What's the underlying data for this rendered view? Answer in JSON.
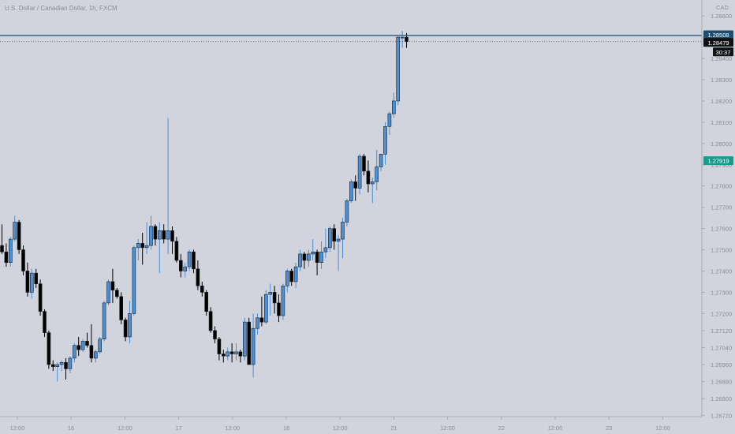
{
  "header": {
    "symbol": "U.S. Dollar / Canadian Dollar, 1h, FXCM"
  },
  "chart_data": {
    "type": "candlestick",
    "currency_label": "CAD",
    "y_ticks": [
      "1.28600",
      "1.28500",
      "1.28400",
      "1.28300",
      "1.28200",
      "1.28100",
      "1.28000",
      "1.27900",
      "1.27800",
      "1.27700",
      "1.27600",
      "1.27500",
      "1.27400",
      "1.27300",
      "1.27200",
      "1.27120",
      "1.27040",
      "1.26960",
      "1.26880",
      "1.26800",
      "1.26720"
    ],
    "x_ticks": [
      "12:00",
      "16",
      "12:00",
      "17",
      "12:00",
      "18",
      "12:00",
      "21",
      "12:00",
      "22",
      "12:00",
      "23",
      "12:00"
    ],
    "ylim": [
      1.26715,
      1.28675
    ],
    "series": [
      {
        "o": 1.2752,
        "h": 1.2762,
        "l": 1.2748,
        "c": 1.2749
      },
      {
        "o": 1.2749,
        "h": 1.2753,
        "l": 1.2742,
        "c": 1.2744
      },
      {
        "o": 1.2744,
        "h": 1.2756,
        "l": 1.2742,
        "c": 1.2755
      },
      {
        "o": 1.2755,
        "h": 1.2766,
        "l": 1.2754,
        "c": 1.2763
      },
      {
        "o": 1.2763,
        "h": 1.2764,
        "l": 1.2748,
        "c": 1.275
      },
      {
        "o": 1.275,
        "h": 1.2752,
        "l": 1.2738,
        "c": 1.274
      },
      {
        "o": 1.274,
        "h": 1.2744,
        "l": 1.2728,
        "c": 1.273
      },
      {
        "o": 1.273,
        "h": 1.2741,
        "l": 1.2727,
        "c": 1.2739
      },
      {
        "o": 1.2739,
        "h": 1.2741,
        "l": 1.2732,
        "c": 1.2734
      },
      {
        "o": 1.2734,
        "h": 1.2736,
        "l": 1.2719,
        "c": 1.2721
      },
      {
        "o": 1.2721,
        "h": 1.2722,
        "l": 1.2709,
        "c": 1.2711
      },
      {
        "o": 1.2711,
        "h": 1.2712,
        "l": 1.2694,
        "c": 1.2696
      },
      {
        "o": 1.2696,
        "h": 1.2698,
        "l": 1.2693,
        "c": 1.2695
      },
      {
        "o": 1.2695,
        "h": 1.2697,
        "l": 1.2688,
        "c": 1.2696
      },
      {
        "o": 1.2696,
        "h": 1.2698,
        "l": 1.2693,
        "c": 1.2697
      },
      {
        "o": 1.2697,
        "h": 1.2699,
        "l": 1.2689,
        "c": 1.2694
      },
      {
        "o": 1.2694,
        "h": 1.27,
        "l": 1.2692,
        "c": 1.2699
      },
      {
        "o": 1.2699,
        "h": 1.2706,
        "l": 1.2697,
        "c": 1.2705
      },
      {
        "o": 1.2705,
        "h": 1.2709,
        "l": 1.27,
        "c": 1.2703
      },
      {
        "o": 1.2703,
        "h": 1.2708,
        "l": 1.2702,
        "c": 1.2707
      },
      {
        "o": 1.2707,
        "h": 1.2711,
        "l": 1.2704,
        "c": 1.2705
      },
      {
        "o": 1.2705,
        "h": 1.2715,
        "l": 1.2697,
        "c": 1.2699
      },
      {
        "o": 1.2699,
        "h": 1.2703,
        "l": 1.2697,
        "c": 1.2702
      },
      {
        "o": 1.2702,
        "h": 1.2709,
        "l": 1.2701,
        "c": 1.2708
      },
      {
        "o": 1.2708,
        "h": 1.2726,
        "l": 1.2707,
        "c": 1.2725
      },
      {
        "o": 1.2725,
        "h": 1.2736,
        "l": 1.2724,
        "c": 1.2735
      },
      {
        "o": 1.2735,
        "h": 1.2741,
        "l": 1.2725,
        "c": 1.2731
      },
      {
        "o": 1.2731,
        "h": 1.2732,
        "l": 1.2727,
        "c": 1.2728
      },
      {
        "o": 1.2728,
        "h": 1.273,
        "l": 1.2715,
        "c": 1.2717
      },
      {
        "o": 1.2717,
        "h": 1.2718,
        "l": 1.2707,
        "c": 1.2709
      },
      {
        "o": 1.2709,
        "h": 1.2726,
        "l": 1.2706,
        "c": 1.272
      },
      {
        "o": 1.272,
        "h": 1.2752,
        "l": 1.2719,
        "c": 1.2751
      },
      {
        "o": 1.2751,
        "h": 1.2755,
        "l": 1.2745,
        "c": 1.2753
      },
      {
        "o": 1.2753,
        "h": 1.2758,
        "l": 1.2743,
        "c": 1.2751
      },
      {
        "o": 1.2751,
        "h": 1.2763,
        "l": 1.2748,
        "c": 1.2752
      },
      {
        "o": 1.2752,
        "h": 1.2766,
        "l": 1.275,
        "c": 1.2761
      },
      {
        "o": 1.2761,
        "h": 1.2762,
        "l": 1.2752,
        "c": 1.2755
      },
      {
        "o": 1.2755,
        "h": 1.2763,
        "l": 1.2739,
        "c": 1.2759
      },
      {
        "o": 1.2759,
        "h": 1.2762,
        "l": 1.2753,
        "c": 1.2755
      },
      {
        "o": 1.2755,
        "h": 1.2812,
        "l": 1.2748,
        "c": 1.2759
      },
      {
        "o": 1.2759,
        "h": 1.2761,
        "l": 1.2748,
        "c": 1.2754
      },
      {
        "o": 1.2754,
        "h": 1.2756,
        "l": 1.2744,
        "c": 1.2745
      },
      {
        "o": 1.2745,
        "h": 1.2748,
        "l": 1.2737,
        "c": 1.274
      },
      {
        "o": 1.274,
        "h": 1.2744,
        "l": 1.2737,
        "c": 1.2742
      },
      {
        "o": 1.2742,
        "h": 1.275,
        "l": 1.274,
        "c": 1.2749
      },
      {
        "o": 1.2749,
        "h": 1.275,
        "l": 1.2739,
        "c": 1.2741
      },
      {
        "o": 1.2741,
        "h": 1.2745,
        "l": 1.2731,
        "c": 1.2733
      },
      {
        "o": 1.2733,
        "h": 1.2735,
        "l": 1.2728,
        "c": 1.273
      },
      {
        "o": 1.273,
        "h": 1.2731,
        "l": 1.2719,
        "c": 1.2721
      },
      {
        "o": 1.2721,
        "h": 1.2723,
        "l": 1.2711,
        "c": 1.2712
      },
      {
        "o": 1.2712,
        "h": 1.2714,
        "l": 1.2706,
        "c": 1.2708
      },
      {
        "o": 1.2708,
        "h": 1.2709,
        "l": 1.2698,
        "c": 1.2701
      },
      {
        "o": 1.2701,
        "h": 1.2703,
        "l": 1.2697,
        "c": 1.27
      },
      {
        "o": 1.27,
        "h": 1.2704,
        "l": 1.2698,
        "c": 1.2702
      },
      {
        "o": 1.2702,
        "h": 1.2706,
        "l": 1.2697,
        "c": 1.2701
      },
      {
        "o": 1.2701,
        "h": 1.2706,
        "l": 1.2698,
        "c": 1.2702
      },
      {
        "o": 1.2702,
        "h": 1.2703,
        "l": 1.2697,
        "c": 1.27
      },
      {
        "o": 1.27,
        "h": 1.2718,
        "l": 1.2698,
        "c": 1.2716
      },
      {
        "o": 1.2716,
        "h": 1.2718,
        "l": 1.2696,
        "c": 1.2696
      },
      {
        "o": 1.2696,
        "h": 1.272,
        "l": 1.269,
        "c": 1.2713
      },
      {
        "o": 1.2713,
        "h": 1.272,
        "l": 1.271,
        "c": 1.2718
      },
      {
        "o": 1.2718,
        "h": 1.2728,
        "l": 1.2714,
        "c": 1.2716
      },
      {
        "o": 1.2716,
        "h": 1.2731,
        "l": 1.2715,
        "c": 1.2729
      },
      {
        "o": 1.2729,
        "h": 1.2734,
        "l": 1.2719,
        "c": 1.273
      },
      {
        "o": 1.273,
        "h": 1.2733,
        "l": 1.272,
        "c": 1.2725
      },
      {
        "o": 1.2725,
        "h": 1.2729,
        "l": 1.2716,
        "c": 1.2719
      },
      {
        "o": 1.2719,
        "h": 1.2734,
        "l": 1.2717,
        "c": 1.2733
      },
      {
        "o": 1.2733,
        "h": 1.2741,
        "l": 1.273,
        "c": 1.274
      },
      {
        "o": 1.274,
        "h": 1.2741,
        "l": 1.2733,
        "c": 1.2735
      },
      {
        "o": 1.2735,
        "h": 1.2744,
        "l": 1.2732,
        "c": 1.2742
      },
      {
        "o": 1.2742,
        "h": 1.275,
        "l": 1.274,
        "c": 1.2748
      },
      {
        "o": 1.2748,
        "h": 1.2749,
        "l": 1.2741,
        "c": 1.2745
      },
      {
        "o": 1.2745,
        "h": 1.275,
        "l": 1.2742,
        "c": 1.2748
      },
      {
        "o": 1.2748,
        "h": 1.2755,
        "l": 1.2745,
        "c": 1.2749
      },
      {
        "o": 1.2749,
        "h": 1.275,
        "l": 1.2738,
        "c": 1.2744
      },
      {
        "o": 1.2744,
        "h": 1.2754,
        "l": 1.2741,
        "c": 1.2749
      },
      {
        "o": 1.2749,
        "h": 1.276,
        "l": 1.2746,
        "c": 1.2751
      },
      {
        "o": 1.2751,
        "h": 1.2761,
        "l": 1.2749,
        "c": 1.276
      },
      {
        "o": 1.276,
        "h": 1.2762,
        "l": 1.275,
        "c": 1.2754
      },
      {
        "o": 1.2754,
        "h": 1.2757,
        "l": 1.274,
        "c": 1.2755
      },
      {
        "o": 1.2755,
        "h": 1.2765,
        "l": 1.2746,
        "c": 1.2763
      },
      {
        "o": 1.2763,
        "h": 1.2774,
        "l": 1.2761,
        "c": 1.2773
      },
      {
        "o": 1.2773,
        "h": 1.2783,
        "l": 1.2772,
        "c": 1.2782
      },
      {
        "o": 1.2782,
        "h": 1.2785,
        "l": 1.2773,
        "c": 1.2779
      },
      {
        "o": 1.2779,
        "h": 1.2795,
        "l": 1.2776,
        "c": 1.2794
      },
      {
        "o": 1.2794,
        "h": 1.2795,
        "l": 1.2785,
        "c": 1.2787
      },
      {
        "o": 1.2787,
        "h": 1.2792,
        "l": 1.2777,
        "c": 1.2781
      },
      {
        "o": 1.2781,
        "h": 1.2784,
        "l": 1.2772,
        "c": 1.2782
      },
      {
        "o": 1.2782,
        "h": 1.2797,
        "l": 1.2778,
        "c": 1.2789
      },
      {
        "o": 1.2789,
        "h": 1.2795,
        "l": 1.2787,
        "c": 1.2795
      },
      {
        "o": 1.2795,
        "h": 1.281,
        "l": 1.279,
        "c": 1.2808
      },
      {
        "o": 1.2808,
        "h": 1.2815,
        "l": 1.2804,
        "c": 1.2814
      },
      {
        "o": 1.2814,
        "h": 1.2824,
        "l": 1.2812,
        "c": 1.282
      },
      {
        "o": 1.282,
        "h": 1.2851,
        "l": 1.2818,
        "c": 1.285
      },
      {
        "o": 1.285,
        "h": 1.2853,
        "l": 1.2845,
        "c": 1.285
      },
      {
        "o": 1.285,
        "h": 1.2852,
        "l": 1.2845,
        "c": 1.2848
      }
    ],
    "price_labels": [
      {
        "text": "1.28508",
        "kind": "line",
        "value": 1.28508
      },
      {
        "text": "1.28479",
        "kind": "last",
        "value": 1.28479
      },
      {
        "text": "30:37",
        "kind": "countdown",
        "value": 1.28479
      },
      {
        "text": "1.27919",
        "kind": "marker",
        "value": 1.27919
      }
    ]
  },
  "colors": {
    "background": "#d1d4dc",
    "up": "#4a90d9",
    "down": "#000000",
    "hline": "#1f4e6e",
    "marker_bg": "#1a9a8c",
    "axis_line": "#a8acb5",
    "grid": "#c7cad2"
  }
}
